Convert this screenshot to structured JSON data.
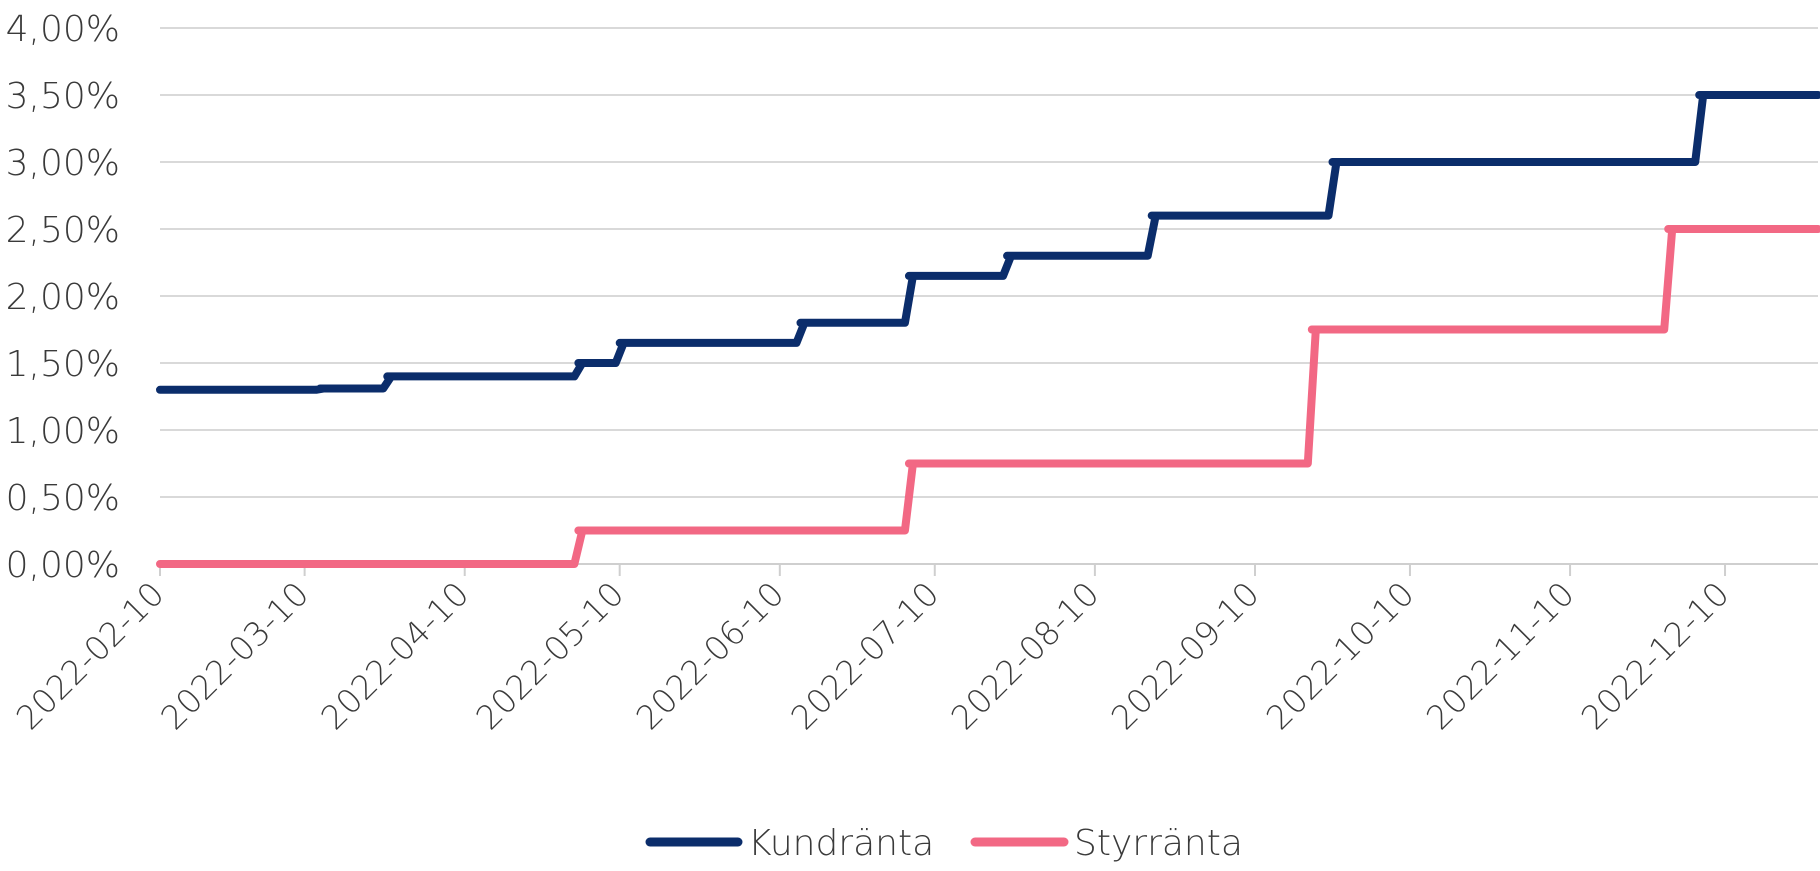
{
  "chart_data": {
    "type": "line",
    "step": true,
    "x_start": "2022-02-10",
    "x_end": "2022-12-28",
    "x_ticks": [
      "2022-02-10",
      "2022-03-10",
      "2022-04-10",
      "2022-05-10",
      "2022-06-10",
      "2022-07-10",
      "2022-08-10",
      "2022-09-10",
      "2022-10-10",
      "2022-11-10",
      "2022-12-10"
    ],
    "y_ticks": [
      "0,00%",
      "0,50%",
      "1,00%",
      "1,50%",
      "2,00%",
      "2,50%",
      "3,00%",
      "3,50%",
      "4,00%"
    ],
    "ylim": [
      0,
      4
    ],
    "grid": true,
    "legend_position": "bottom",
    "series": [
      {
        "name": "Kundränta",
        "color": "#0b2d6b",
        "points": [
          [
            "2022-02-10",
            1.3
          ],
          [
            "2022-03-13",
            1.31
          ],
          [
            "2022-03-26",
            1.4
          ],
          [
            "2022-05-02",
            1.5
          ],
          [
            "2022-05-10",
            1.65
          ],
          [
            "2022-06-14",
            1.8
          ],
          [
            "2022-07-05",
            2.15
          ],
          [
            "2022-07-24",
            2.3
          ],
          [
            "2022-08-21",
            2.6
          ],
          [
            "2022-09-25",
            3.0
          ],
          [
            "2022-12-05",
            3.5
          ],
          [
            "2022-12-28",
            3.5
          ]
        ]
      },
      {
        "name": "Styrränta",
        "color": "#f26884",
        "points": [
          [
            "2022-02-10",
            0.0
          ],
          [
            "2022-05-02",
            0.25
          ],
          [
            "2022-07-05",
            0.75
          ],
          [
            "2022-09-21",
            1.75
          ],
          [
            "2022-11-29",
            2.5
          ],
          [
            "2022-12-28",
            2.5
          ]
        ]
      }
    ]
  }
}
